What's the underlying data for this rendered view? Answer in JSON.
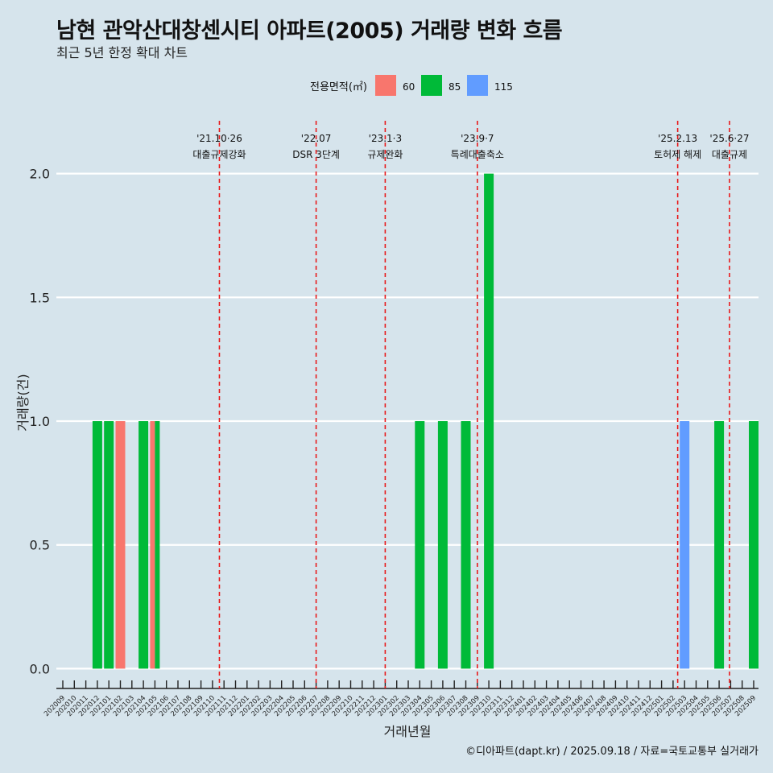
{
  "chart_data": {
    "type": "bar",
    "title": "남현 관악산대창센시티 아파트(2005) 거래량 변화 흐름",
    "subtitle": "최근 5년 한정 확대 차트",
    "xlabel": "거래년월",
    "ylabel": "거래량(건)",
    "caption": "©디아파트(dapt.kr) / 2025.09.18 / 자료=국토교통부 실거래가",
    "ylim": [
      -0.08,
      2.22
    ],
    "yticks": [
      0.0,
      0.5,
      1.0,
      1.5,
      2.0
    ],
    "ytick_labels": [
      "0.0",
      "0.5",
      "1.0",
      "1.5",
      "2.0"
    ],
    "legend": {
      "title": "전용면적(㎡)",
      "position": "top",
      "entries": [
        {
          "label": "60",
          "color": "#f8766d"
        },
        {
          "label": "85",
          "color": "#00ba38"
        },
        {
          "label": "115",
          "color": "#619cff"
        }
      ]
    },
    "categories": [
      "202009",
      "202010",
      "202011",
      "202012",
      "202101",
      "202102",
      "202103",
      "202104",
      "202105",
      "202106",
      "202107",
      "202108",
      "202109",
      "202110",
      "202111",
      "202112",
      "202201",
      "202202",
      "202203",
      "202204",
      "202205",
      "202206",
      "202207",
      "202208",
      "202209",
      "202210",
      "202211",
      "202212",
      "202301",
      "202302",
      "202303",
      "202304",
      "202305",
      "202306",
      "202307",
      "202308",
      "202309",
      "202310",
      "202311",
      "202312",
      "202401",
      "202402",
      "202403",
      "202404",
      "202405",
      "202406",
      "202407",
      "202408",
      "202409",
      "202410",
      "202411",
      "202412",
      "202501",
      "202502",
      "202503",
      "202504",
      "202505",
      "202506",
      "202507",
      "202508",
      "202509"
    ],
    "bars": [
      {
        "month": "202012",
        "area": "85",
        "value": 1
      },
      {
        "month": "202101",
        "area": "85",
        "value": 1
      },
      {
        "month": "202102",
        "area": "60",
        "value": 1
      },
      {
        "month": "202104",
        "area": "85",
        "value": 1
      },
      {
        "month": "202105",
        "area": "60",
        "value": 1
      },
      {
        "month": "202105",
        "area": "85",
        "value": 1
      },
      {
        "month": "202304",
        "area": "85",
        "value": 1
      },
      {
        "month": "202306",
        "area": "85",
        "value": 1
      },
      {
        "month": "202308",
        "area": "85",
        "value": 1
      },
      {
        "month": "202310",
        "area": "85",
        "value": 2
      },
      {
        "month": "202503",
        "area": "115",
        "value": 1
      },
      {
        "month": "202506",
        "area": "85",
        "value": 1
      },
      {
        "month": "202509",
        "area": "85",
        "value": 1
      }
    ],
    "events": [
      {
        "date": "'21.10·26",
        "label": "대출규제강화",
        "month": "202110",
        "offset": 0.6
      },
      {
        "date": "'22.07",
        "label": "DSR 3단계",
        "month": "202207",
        "offset": 0.0
      },
      {
        "date": "'23.1·3",
        "label": "규제완화",
        "month": "202301",
        "offset": 0.0
      },
      {
        "date": "'23.9·7",
        "label": "특례대출축소",
        "month": "202309",
        "offset": 0.0
      },
      {
        "date": "'25.2.13",
        "label": "토허제 해제",
        "month": "202502",
        "offset": 0.4
      },
      {
        "date": "'25.6·27",
        "label": "대출규제",
        "month": "202506",
        "offset": 0.9
      }
    ]
  }
}
